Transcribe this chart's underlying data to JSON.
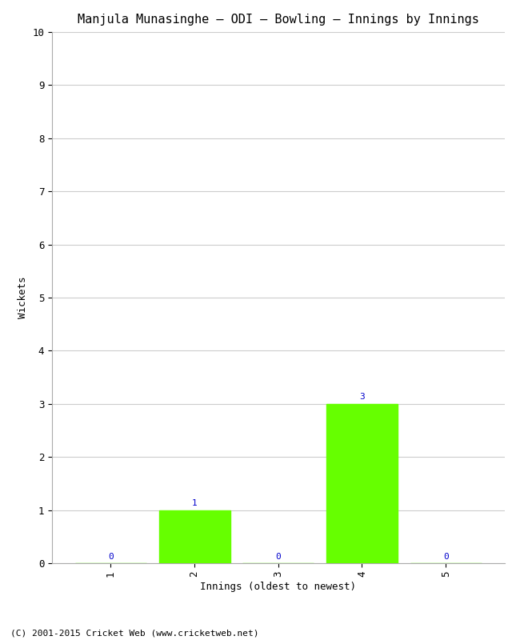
{
  "title": "Manjula Munasinghe – ODI – Bowling – Innings by Innings",
  "xlabel": "Innings (oldest to newest)",
  "ylabel": "Wickets",
  "categories": [
    1,
    2,
    3,
    4,
    5
  ],
  "values": [
    0,
    1,
    0,
    3,
    0
  ],
  "bar_color": "#66ff00",
  "bar_edge_color": "#66ff00",
  "ylim": [
    0,
    10
  ],
  "yticks": [
    0,
    1,
    2,
    3,
    4,
    5,
    6,
    7,
    8,
    9,
    10
  ],
  "annotation_color": "#0000cc",
  "annotation_fontsize": 8,
  "background_color": "#ffffff",
  "grid_color": "#cccccc",
  "title_fontsize": 11,
  "axis_label_fontsize": 9,
  "tick_fontsize": 9,
  "footer": "(C) 2001-2015 Cricket Web (www.cricketweb.net)",
  "footer_fontsize": 8
}
